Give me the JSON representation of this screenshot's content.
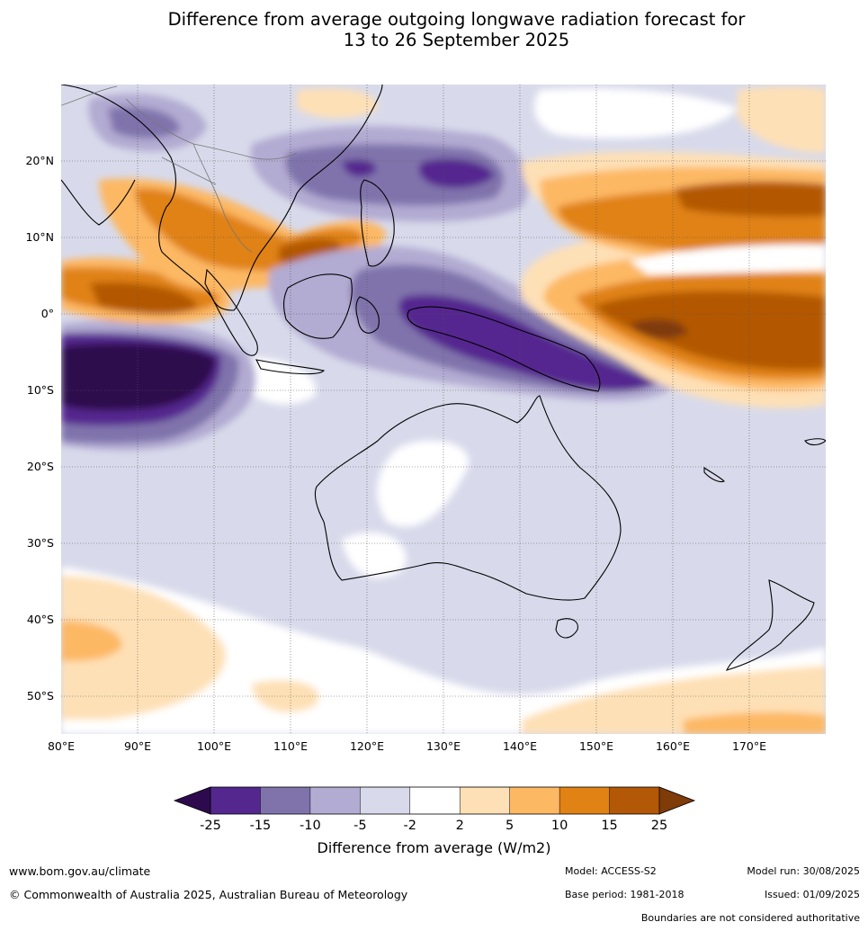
{
  "title_line1": "Difference from average outgoing longwave radiation forecast for",
  "title_line2": "13 to 26 September 2025",
  "map": {
    "lon_labels": [
      "80°E",
      "90°E",
      "100°E",
      "110°E",
      "120°E",
      "130°E",
      "140°E",
      "150°E",
      "160°E",
      "170°E"
    ],
    "lat_labels": [
      "20°N",
      "10°N",
      "0°",
      "10°S",
      "20°S",
      "30°S",
      "40°S",
      "50°S"
    ],
    "lon_range": [
      80,
      180
    ],
    "lat_range": [
      -55,
      30
    ]
  },
  "colorbar": {
    "ticks": [
      "-25",
      "-15",
      "-10",
      "-5",
      "-2",
      "2",
      "5",
      "10",
      "15",
      "25"
    ],
    "colors": [
      "#2d0a4e",
      "#54278f",
      "#8073ac",
      "#b2abd2",
      "#d8daeb",
      "#ffffff",
      "#fee0b6",
      "#fdb863",
      "#e08214",
      "#b35806",
      "#7f3b08"
    ],
    "title": "Difference from average (W/m2)"
  },
  "footer": {
    "url": "www.bom.gov.au/climate",
    "copyright": "© Commonwealth of Australia 2025, Australian Bureau of Meteorology",
    "model": "Model: ACCESS-S2",
    "base_period": "Base period: 1981-2018",
    "model_run": "Model run: 30/08/2025",
    "issued": "Issued: 01/09/2025",
    "boundaries": "Boundaries are not considered authoritative"
  }
}
